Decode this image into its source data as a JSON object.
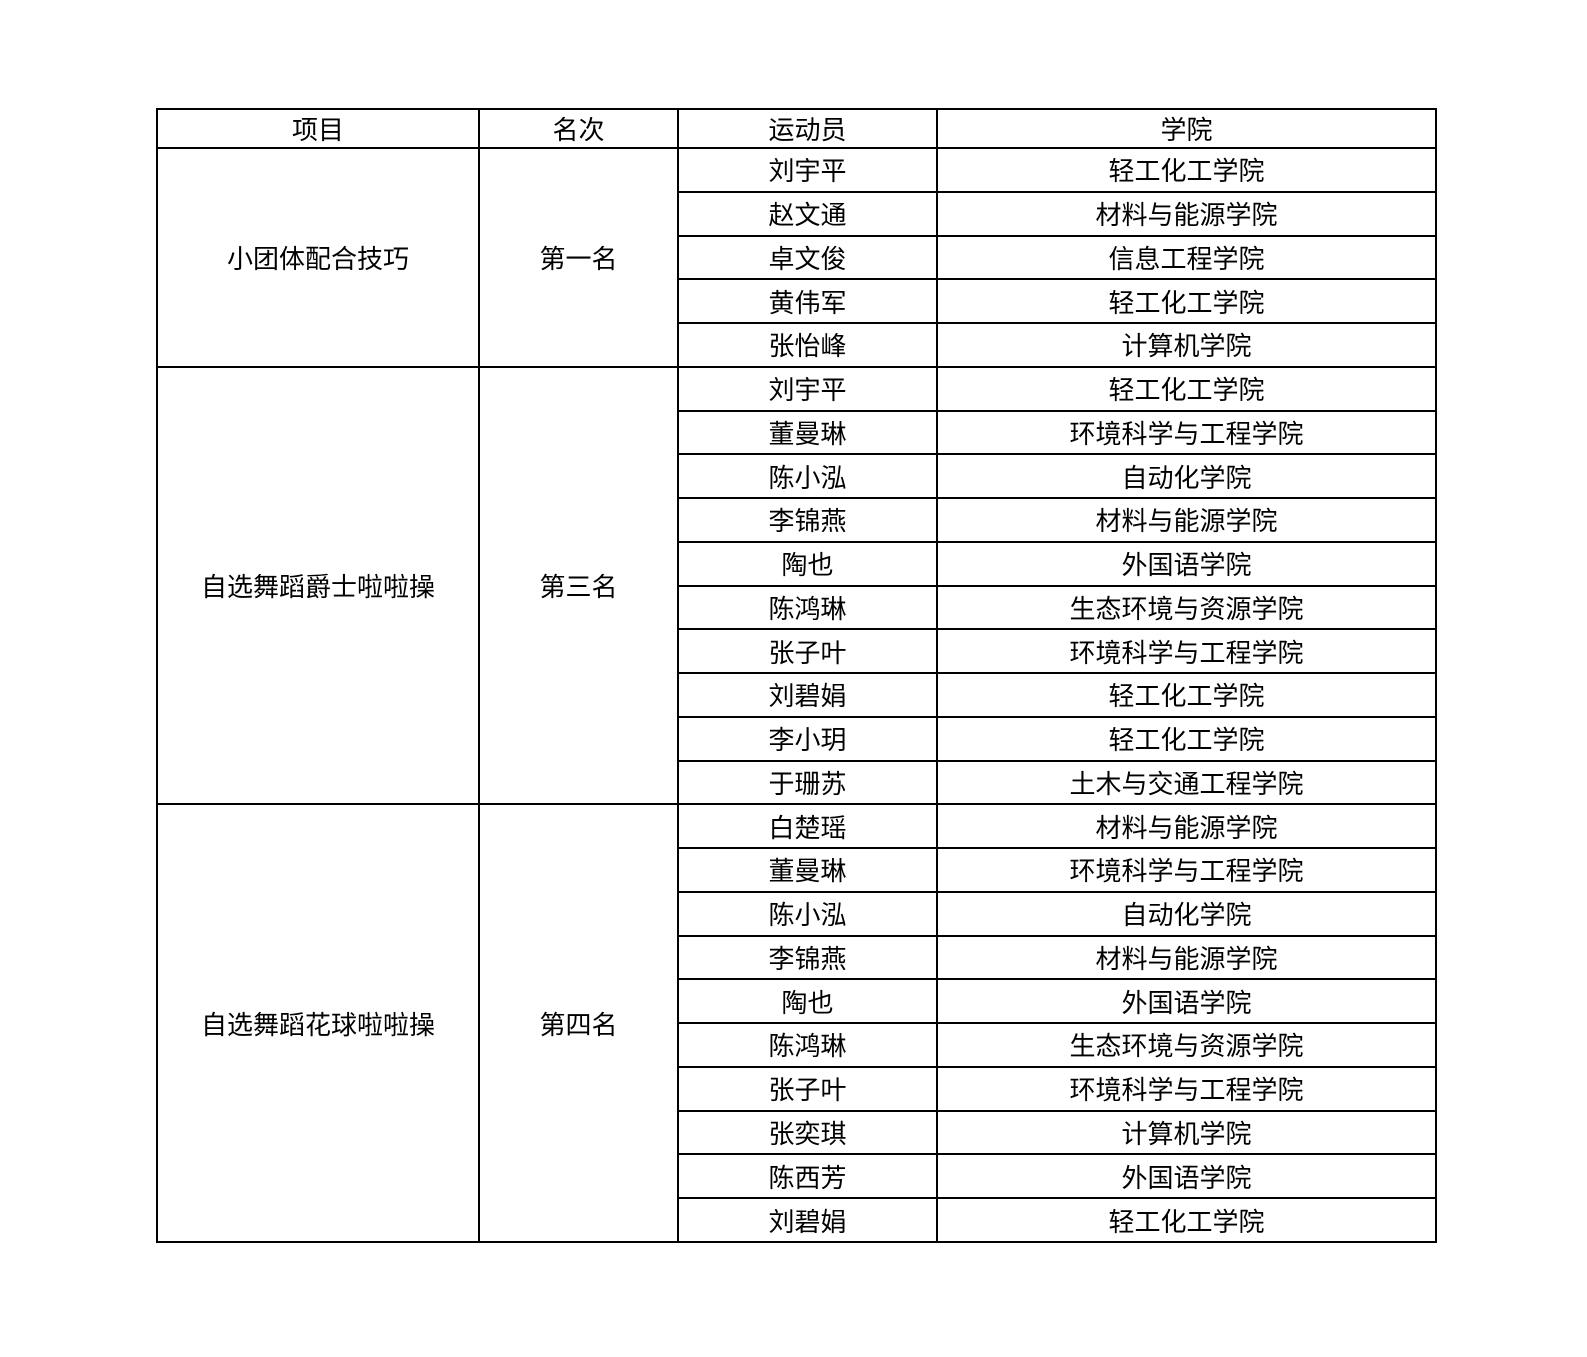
{
  "colors": {
    "background": "#ffffff",
    "border": "#000000",
    "text": "#000000"
  },
  "table": {
    "headers": [
      "项目",
      "名次",
      "运动员",
      "学院"
    ],
    "sections": [
      {
        "event": "小团体配合技巧",
        "rank": "第一名",
        "athletes": [
          {
            "name": "刘宇平",
            "college": "轻工化工学院"
          },
          {
            "name": "赵文通",
            "college": "材料与能源学院"
          },
          {
            "name": "卓文俊",
            "college": "信息工程学院"
          },
          {
            "name": "黄伟军",
            "college": "轻工化工学院"
          },
          {
            "name": "张怡峰",
            "college": "计算机学院"
          }
        ]
      },
      {
        "event": "自选舞蹈爵士啦啦操",
        "rank": "第三名",
        "athletes": [
          {
            "name": "刘宇平",
            "college": "轻工化工学院"
          },
          {
            "name": "董曼琳",
            "college": "环境科学与工程学院"
          },
          {
            "name": "陈小泓",
            "college": "自动化学院"
          },
          {
            "name": "李锦燕",
            "college": "材料与能源学院"
          },
          {
            "name": "陶也",
            "college": "外国语学院"
          },
          {
            "name": "陈鸿琳",
            "college": "生态环境与资源学院"
          },
          {
            "name": "张子叶",
            "college": "环境科学与工程学院"
          },
          {
            "name": "刘碧娟",
            "college": "轻工化工学院"
          },
          {
            "name": "李小玥",
            "college": "轻工化工学院"
          },
          {
            "name": "于珊苏",
            "college": "土木与交通工程学院"
          }
        ]
      },
      {
        "event": "自选舞蹈花球啦啦操",
        "rank": "第四名",
        "athletes": [
          {
            "name": "白楚瑶",
            "college": "材料与能源学院"
          },
          {
            "name": "董曼琳",
            "college": "环境科学与工程学院"
          },
          {
            "name": "陈小泓",
            "college": "自动化学院"
          },
          {
            "name": "李锦燕",
            "college": "材料与能源学院"
          },
          {
            "name": "陶也",
            "college": "外国语学院"
          },
          {
            "name": "陈鸿琳",
            "college": "生态环境与资源学院"
          },
          {
            "name": "张子叶",
            "college": "环境科学与工程学院"
          },
          {
            "name": "张奕琪",
            "college": "计算机学院"
          },
          {
            "name": "陈西芳",
            "college": "外国语学院"
          },
          {
            "name": "刘碧娟",
            "college": "轻工化工学院"
          }
        ]
      }
    ]
  }
}
